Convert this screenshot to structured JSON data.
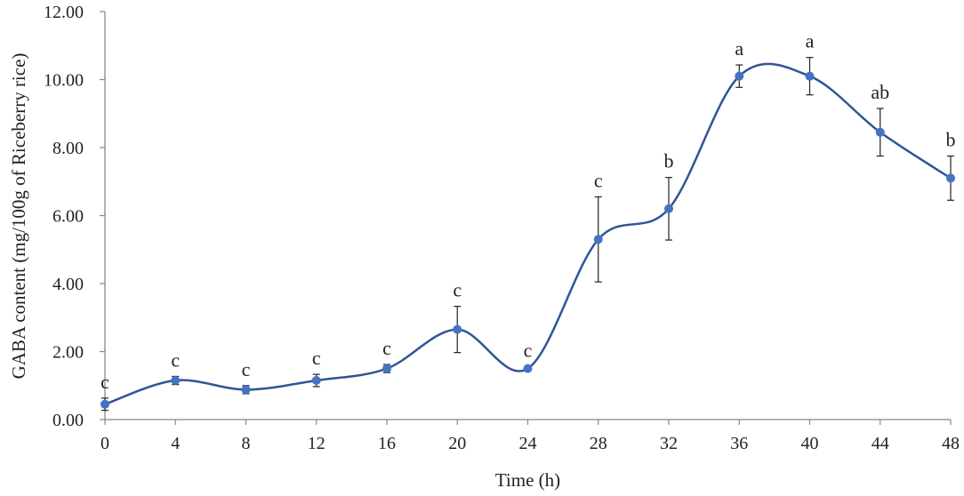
{
  "chart_data": {
    "type": "line",
    "title": "",
    "xlabel": "Time (h)",
    "ylabel": "GABA content (mg/100g of  Riceberry rice)",
    "x": [
      0,
      4,
      8,
      12,
      16,
      20,
      24,
      28,
      32,
      36,
      40,
      44,
      48
    ],
    "x_tick_labels": [
      "0",
      "4",
      "8",
      "12",
      "16",
      "20",
      "24",
      "28",
      "32",
      "36",
      "40",
      "44",
      "48"
    ],
    "y_tick_labels": [
      "0.00",
      "2.00",
      "4.00",
      "6.00",
      "8.00",
      "10.00",
      "12.00"
    ],
    "ylim": [
      0,
      12
    ],
    "grid": false,
    "series": [
      {
        "values": [
          0.45,
          1.15,
          0.88,
          1.15,
          1.5,
          2.65,
          1.5,
          5.3,
          6.2,
          10.1,
          10.1,
          8.45,
          7.1
        ],
        "errors": [
          0.18,
          0.12,
          0.12,
          0.18,
          0.12,
          0.68,
          0.05,
          1.25,
          0.92,
          0.33,
          0.55,
          0.7,
          0.65
        ],
        "significance": [
          "c",
          "c",
          "c",
          "c",
          "c",
          "c",
          "c",
          "c",
          "b",
          "a",
          "a",
          "ab",
          "b"
        ],
        "color": "#2f5597",
        "marker_color": "#4472c4"
      }
    ]
  }
}
